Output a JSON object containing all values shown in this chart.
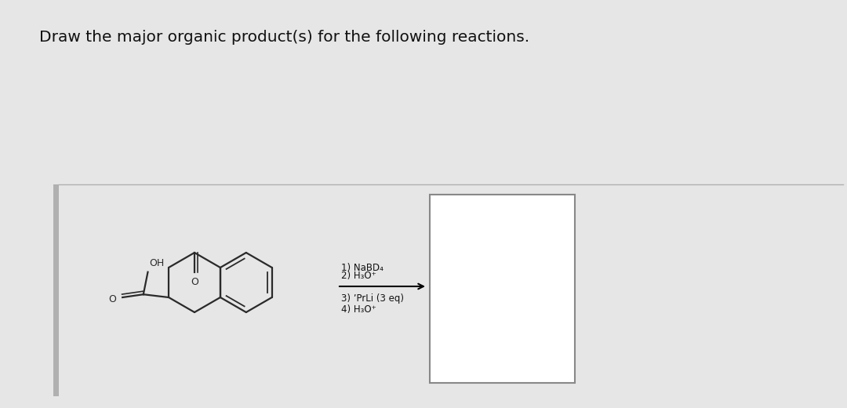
{
  "title": "Draw the major organic product(s) for the following reactions.",
  "title_fontsize": 14.5,
  "bg_color": "#e6e6e6",
  "reagents_line1": "1) NaBD₄",
  "reagents_line2": "2) H₃O⁺",
  "reagents_line3": "3) ʼPrLi (3 eq)",
  "reagents_line4": "4) H₃O⁺"
}
